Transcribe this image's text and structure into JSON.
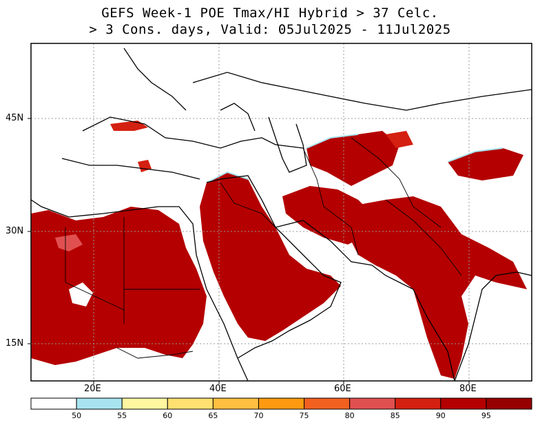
{
  "title": {
    "line1": "GEFS Week-1 POE Tmax/HI Hybrid > 37 Celc.",
    "line2": "> 3 Cons. days, Valid: 05Jul2025 - 11Jul2025"
  },
  "map": {
    "lat_labels": [
      "45N",
      "30N",
      "15N"
    ],
    "lon_labels": [
      "20E",
      "40E",
      "60E",
      "80E"
    ]
  },
  "legend": {
    "colors": [
      "#ffffff",
      "#a8e4f0",
      "#fff7a0",
      "#ffe070",
      "#ffbf40",
      "#ff9a10",
      "#f26020",
      "#e05050",
      "#d42010",
      "#b40000",
      "#960000"
    ],
    "labels": [
      "50",
      "55",
      "60",
      "65",
      "70",
      "75",
      "80",
      "85",
      "90",
      "95"
    ]
  }
}
